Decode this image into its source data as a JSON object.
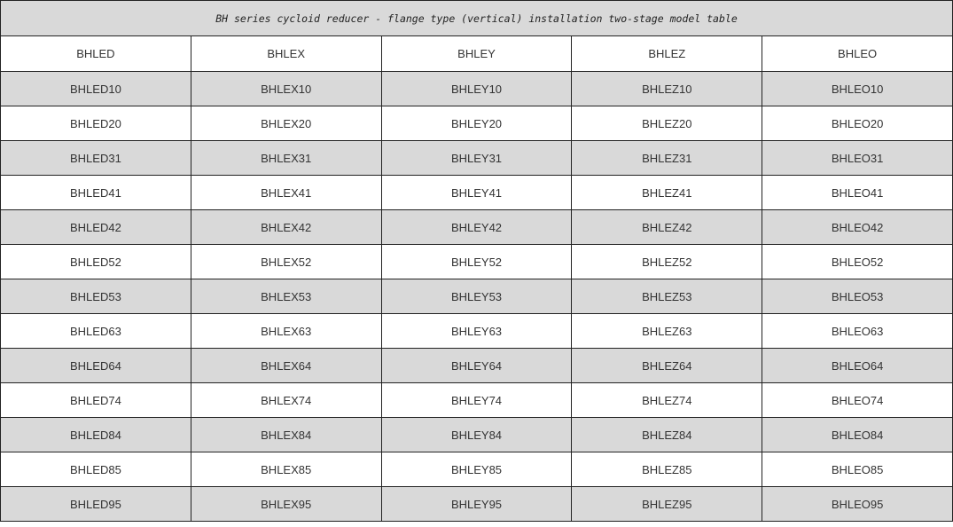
{
  "title": "BH series cycloid reducer - flange type (vertical) installation two-stage model table",
  "columns": [
    "BHLED",
    "BHLEX",
    "BHLEY",
    "BHLEZ",
    "BHLEO"
  ],
  "rows": [
    [
      "BHLED10",
      "BHLEX10",
      "BHLEY10",
      "BHLEZ10",
      "BHLEO10"
    ],
    [
      "BHLED20",
      "BHLEX20",
      "BHLEY20",
      "BHLEZ20",
      "BHLEO20"
    ],
    [
      "BHLED31",
      "BHLEX31",
      "BHLEY31",
      "BHLEZ31",
      "BHLEO31"
    ],
    [
      "BHLED41",
      "BHLEX41",
      "BHLEY41",
      "BHLEZ41",
      "BHLEO41"
    ],
    [
      "BHLED42",
      "BHLEX42",
      "BHLEY42",
      "BHLEZ42",
      "BHLEO42"
    ],
    [
      "BHLED52",
      "BHLEX52",
      "BHLEY52",
      "BHLEZ52",
      "BHLEO52"
    ],
    [
      "BHLED53",
      "BHLEX53",
      "BHLEY53",
      "BHLEZ53",
      "BHLEO53"
    ],
    [
      "BHLED63",
      "BHLEX63",
      "BHLEY63",
      "BHLEZ63",
      "BHLEO63"
    ],
    [
      "BHLED64",
      "BHLEX64",
      "BHLEY64",
      "BHLEZ64",
      "BHLEO64"
    ],
    [
      "BHLED74",
      "BHLEX74",
      "BHLEY74",
      "BHLEZ74",
      "BHLEO74"
    ],
    [
      "BHLED84",
      "BHLEX84",
      "BHLEY84",
      "BHLEZ84",
      "BHLEO84"
    ],
    [
      "BHLED85",
      "BHLEX85",
      "BHLEY85",
      "BHLEZ85",
      "BHLEO85"
    ],
    [
      "BHLED95",
      "BHLEX95",
      "BHLEY95",
      "BHLEZ95",
      "BHLEO95"
    ]
  ],
  "colors": {
    "stripe": "#d9d9d9",
    "border": "#222222",
    "text": "#333333"
  }
}
